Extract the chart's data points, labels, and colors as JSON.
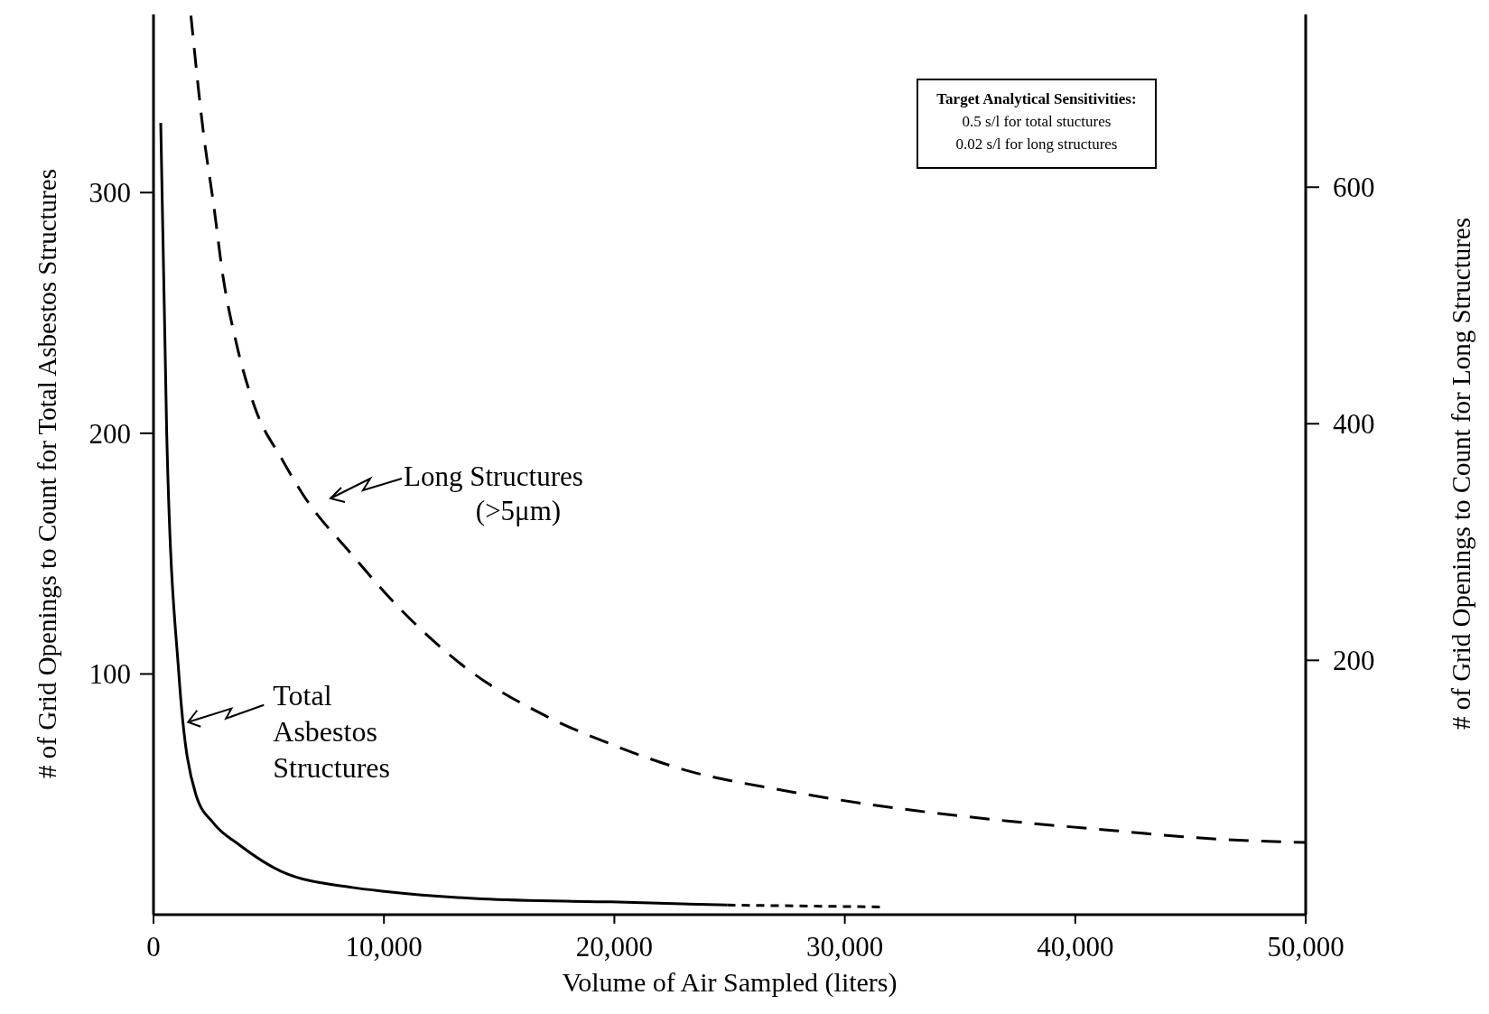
{
  "chart_data": {
    "type": "line",
    "xlabel": "Volume of Air Sampled (liters)",
    "ylabel": "# of Grid Openings to Count for Total Asbestos Structures",
    "y2label": "# of Grid Openings to Count for Long Structures",
    "xlim": [
      0,
      50000
    ],
    "xticks": [
      0,
      {
        "value": 10000,
        "label": "10,000"
      },
      {
        "value": 20000,
        "label": "20,000"
      },
      {
        "value": 30000,
        "label": "30,000"
      },
      {
        "value": 40000,
        "label": "40,000"
      },
      {
        "value": 50000,
        "label": "50,000"
      }
    ],
    "ylim": [
      0,
      374
    ],
    "yticks": [
      100,
      200,
      300
    ],
    "y2lim": [
      -15,
      746
    ],
    "y2ticks": [
      200,
      400,
      600
    ],
    "series": [
      {
        "color": "#000000",
        "line_style": "solid",
        "x": [
          314,
          573,
          1100,
          1835,
          2604,
          3725,
          5545,
          8627,
          10027,
          14231,
          19831,
          24900
        ],
        "values": [
          329,
          200,
          100,
          50,
          38,
          29,
          18,
          11.3,
          9.7,
          6.6,
          5.3,
          4
        ]
      },
      {
        "color": "#000000",
        "line_style": "dotted",
        "x": [
          24900,
          31700
        ],
        "values": [
          4,
          3.2
        ]
      },
      {
        "color": "#000000",
        "line_style": "dashed",
        "axis": "y2",
        "x": [
          1624,
          2185,
          2604,
          3020,
          3584,
          4431,
          5545,
          6525,
          8627,
          10729,
          13529,
          17020,
          20000,
          22941,
          27353,
          32255,
          37157,
          41725,
          45294,
          50000
        ],
        "values": [
          745,
          643,
          586,
          524,
          469,
          412,
          371,
          339,
          289,
          243,
          194,
          153,
          128,
          108,
          90,
          75,
          64,
          56,
          50,
          46
        ]
      }
    ],
    "annotations": [
      "Target Analytical Sensitivities:\n0.5 s/l for total stuctures\n0.02 s/l for long structures",
      "Long Structures\n(>5μm)",
      {
        "text": "Total\nAsbestos\nStructures",
        "x": 1500,
        "y": 80
      }
    ]
  }
}
